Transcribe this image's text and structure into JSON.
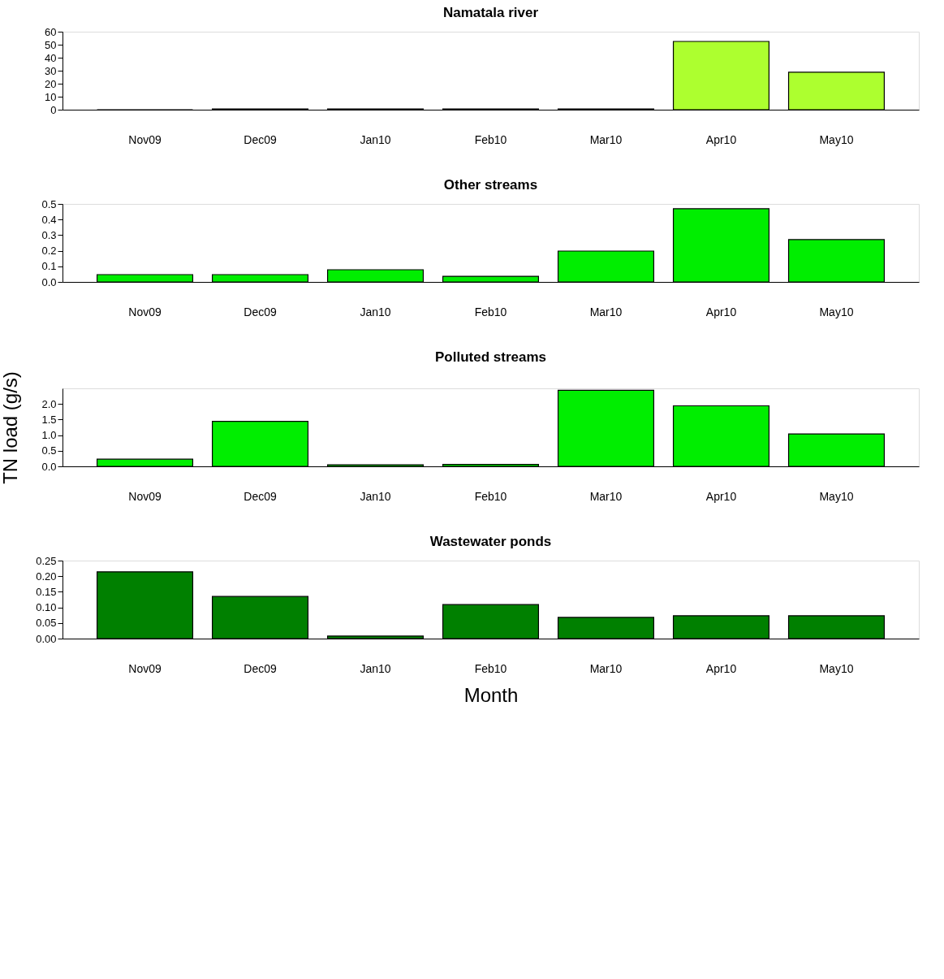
{
  "chart_data": [
    {
      "type": "bar",
      "title": "Namatala river",
      "categories": [
        "Nov09",
        "Dec09",
        "Jan10",
        "Feb10",
        "Mar10",
        "Apr10",
        "May10"
      ],
      "values": [
        0,
        0.5,
        0.5,
        0.5,
        0.5,
        52.5,
        28.8
      ],
      "color": "#adff2f",
      "ylim": [
        0,
        60
      ],
      "yticks": [
        0,
        10,
        20,
        30,
        40,
        50,
        60
      ],
      "grid": false
    },
    {
      "type": "bar",
      "title": "Other streams",
      "categories": [
        "Nov09",
        "Dec09",
        "Jan10",
        "Feb10",
        "Mar10",
        "Apr10",
        "May10"
      ],
      "values": [
        0.047,
        0.047,
        0.078,
        0.036,
        0.198,
        0.469,
        0.271
      ],
      "color": "#00ee00",
      "ylim": [
        0,
        0.5
      ],
      "yticks": [
        {
          "value": 0,
          "label": "0.0"
        },
        0.1,
        0.2,
        0.3,
        0.4,
        0.5
      ],
      "grid": false
    },
    {
      "type": "bar",
      "title": "Polluted streams",
      "ylabel": "TN load (g/s)",
      "categories": [
        "Nov09",
        "Dec09",
        "Jan10",
        "Feb10",
        "Mar10",
        "Apr10",
        "May10"
      ],
      "values": [
        0.23,
        1.44,
        0.05,
        0.06,
        2.44,
        1.94,
        1.04
      ],
      "color": "#00ee00",
      "ylim": [
        0,
        2.5
      ],
      "yticks": [
        {
          "value": 0,
          "label": "0.0"
        },
        0.5,
        {
          "value": 1,
          "label": "1.0"
        },
        1.5,
        {
          "value": 2,
          "label": "2.0"
        }
      ],
      "grid": false
    },
    {
      "type": "bar",
      "title": "Wastewater ponds",
      "xlabel": "Month",
      "categories": [
        "Nov09",
        "Dec09",
        "Jan10",
        "Feb10",
        "Mar10",
        "Apr10",
        "May10"
      ],
      "values": [
        0.214,
        0.135,
        0.008,
        0.109,
        0.068,
        0.073,
        0.073
      ],
      "color": "#008000",
      "ylim": [
        0,
        0.25
      ],
      "yticks": [
        {
          "value": 0,
          "label": "0.00"
        },
        {
          "value": 0.05,
          "label": "0.05"
        },
        {
          "value": 0.1,
          "label": "0.10"
        },
        {
          "value": 0.15,
          "label": "0.15"
        },
        {
          "value": 0.2,
          "label": "0.20"
        },
        {
          "value": 0.25,
          "label": "0.25"
        }
      ],
      "grid": false
    }
  ]
}
